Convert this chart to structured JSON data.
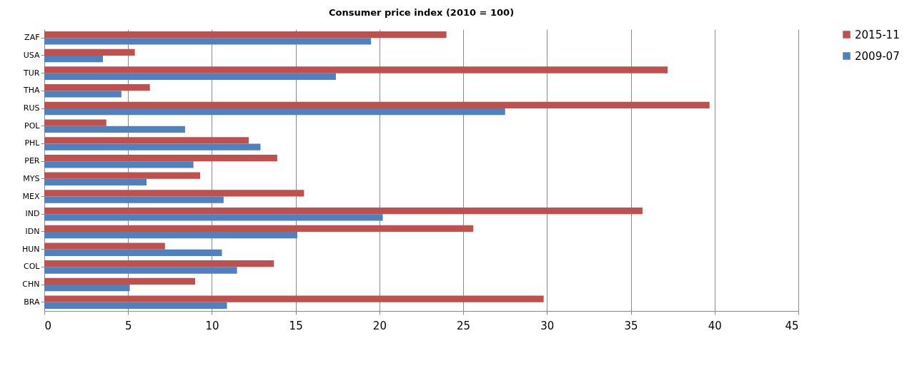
{
  "chart_data": {
    "type": "bar",
    "orientation": "horizontal",
    "title": "Consumer price index (2010 = 100)",
    "categories": [
      "ZAF",
      "USA",
      "TUR",
      "THA",
      "RUS",
      "POL",
      "PHL",
      "PER",
      "MYS",
      "MEX",
      "IND",
      "IDN",
      "HUN",
      "COL",
      "CHN",
      "BRA"
    ],
    "series": [
      {
        "name": "2015-11",
        "color": "#c0504d",
        "values": [
          24.0,
          5.4,
          37.2,
          6.3,
          39.7,
          3.7,
          12.2,
          13.9,
          9.3,
          15.5,
          35.7,
          25.6,
          7.2,
          13.7,
          9.0,
          29.8
        ]
      },
      {
        "name": "2009-07",
        "color": "#4f81bd",
        "values": [
          19.5,
          3.5,
          17.4,
          4.6,
          27.5,
          8.4,
          12.9,
          8.9,
          6.1,
          10.7,
          20.2,
          15.1,
          10.6,
          11.5,
          5.1,
          10.9
        ]
      }
    ],
    "xlim": [
      0,
      45
    ],
    "xticks": [
      0,
      5,
      10,
      15,
      20,
      25,
      30,
      35,
      40,
      45
    ],
    "grid": "x",
    "legend": "right"
  }
}
